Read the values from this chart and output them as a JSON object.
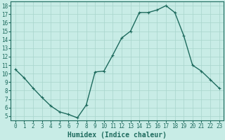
{
  "xlabel": "Humidex (Indice chaleur)",
  "x": [
    0,
    1,
    2,
    3,
    4,
    5,
    6,
    7,
    8,
    9,
    10,
    11,
    12,
    13,
    14,
    15,
    16,
    17,
    18,
    19,
    20,
    21,
    22,
    23
  ],
  "y": [
    10.5,
    9.5,
    8.3,
    7.2,
    6.2,
    5.5,
    5.2,
    4.8,
    6.3,
    10.2,
    10.3,
    12.2,
    14.2,
    15.0,
    17.2,
    17.2,
    17.5,
    18.0,
    17.2,
    14.5,
    11.0,
    10.3,
    9.3,
    8.3
  ],
  "ylim": [
    4.5,
    18.5
  ],
  "yticks": [
    5,
    6,
    7,
    8,
    9,
    10,
    11,
    12,
    13,
    14,
    15,
    16,
    17,
    18
  ],
  "xlim": [
    -0.5,
    23.5
  ],
  "xticks": [
    0,
    1,
    2,
    3,
    4,
    5,
    6,
    7,
    8,
    9,
    10,
    11,
    12,
    13,
    14,
    15,
    16,
    17,
    18,
    19,
    20,
    21,
    22,
    23
  ],
  "line_color": "#1e6b5e",
  "marker": "+",
  "marker_size": 3,
  "line_width": 1.0,
  "bg_color": "#c8ece6",
  "grid_color": "#a8d4cc",
  "tick_label_fontsize": 5.5,
  "xlabel_fontsize": 7.0,
  "spine_color": "#1e6b5e"
}
